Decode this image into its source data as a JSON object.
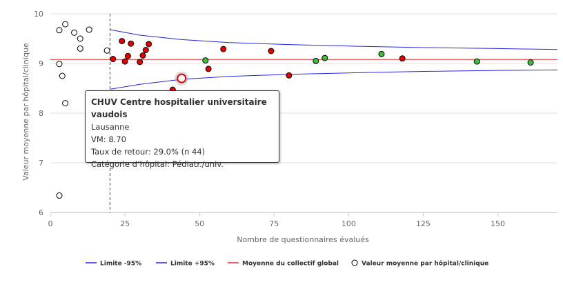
{
  "chart_data": {
    "type": "scatter",
    "xlabel": "Nombre de questionnaires évalués",
    "ylabel": "Valeur moyenne par hôpital/clinique",
    "xlim": [
      0,
      170
    ],
    "ylim": [
      6,
      10
    ],
    "x_ticks": [
      0,
      25,
      50,
      75,
      100,
      125,
      150
    ],
    "y_ticks": [
      6,
      7,
      8,
      9,
      10
    ],
    "grid": "horizontal",
    "legend_position": "bottom",
    "reference_x": 20,
    "mean": 9.08,
    "limits": {
      "lower_95": [
        [
          20,
          8.48
        ],
        [
          30,
          8.58
        ],
        [
          44,
          8.68
        ],
        [
          60,
          8.74
        ],
        [
          80,
          8.78
        ],
        [
          100,
          8.81
        ],
        [
          125,
          8.84
        ],
        [
          150,
          8.86
        ],
        [
          170,
          8.87
        ]
      ],
      "upper_95": [
        [
          20,
          9.68
        ],
        [
          30,
          9.57
        ],
        [
          44,
          9.48
        ],
        [
          60,
          9.42
        ],
        [
          80,
          9.38
        ],
        [
          100,
          9.35
        ],
        [
          125,
          9.32
        ],
        [
          150,
          9.3
        ],
        [
          170,
          9.28
        ]
      ]
    },
    "series": [
      {
        "name": "Limite -95%",
        "kind": "line",
        "color": "#2323e8"
      },
      {
        "name": "Limite +95%",
        "kind": "line",
        "color": "#2323e8"
      },
      {
        "name": "Moyenne du collectif global",
        "kind": "line",
        "color": "#e03131"
      },
      {
        "name": "Valeur moyenne par hôpital/clinique",
        "kind": "scatter",
        "color": "#000000"
      }
    ],
    "points": [
      {
        "x": 3,
        "y": 9.67,
        "group": "open"
      },
      {
        "x": 5,
        "y": 9.79,
        "group": "open"
      },
      {
        "x": 8,
        "y": 9.62,
        "group": "open"
      },
      {
        "x": 10,
        "y": 9.5,
        "group": "open"
      },
      {
        "x": 13,
        "y": 9.68,
        "group": "open"
      },
      {
        "x": 10,
        "y": 9.3,
        "group": "open"
      },
      {
        "x": 19,
        "y": 9.26,
        "group": "open"
      },
      {
        "x": 3,
        "y": 8.99,
        "group": "open"
      },
      {
        "x": 4,
        "y": 8.75,
        "group": "open"
      },
      {
        "x": 5,
        "y": 8.2,
        "group": "open"
      },
      {
        "x": 3,
        "y": 6.34,
        "group": "open"
      },
      {
        "x": 24,
        "y": 9.45,
        "group": "red"
      },
      {
        "x": 27,
        "y": 9.4,
        "group": "red"
      },
      {
        "x": 26,
        "y": 9.15,
        "group": "red"
      },
      {
        "x": 21,
        "y": 9.09,
        "group": "red"
      },
      {
        "x": 25,
        "y": 9.04,
        "group": "red"
      },
      {
        "x": 30,
        "y": 9.03,
        "group": "red"
      },
      {
        "x": 31,
        "y": 9.16,
        "group": "red"
      },
      {
        "x": 32,
        "y": 9.27,
        "group": "red"
      },
      {
        "x": 33,
        "y": 9.39,
        "group": "red"
      },
      {
        "x": 41,
        "y": 8.47,
        "group": "red"
      },
      {
        "x": 53,
        "y": 8.89,
        "group": "red"
      },
      {
        "x": 58,
        "y": 9.29,
        "group": "red"
      },
      {
        "x": 74,
        "y": 9.25,
        "group": "red"
      },
      {
        "x": 80,
        "y": 8.76,
        "group": "red"
      },
      {
        "x": 118,
        "y": 9.1,
        "group": "red"
      },
      {
        "x": 52,
        "y": 9.06,
        "group": "green"
      },
      {
        "x": 89,
        "y": 9.05,
        "group": "green"
      },
      {
        "x": 92,
        "y": 9.11,
        "group": "green"
      },
      {
        "x": 111,
        "y": 9.19,
        "group": "green"
      },
      {
        "x": 143,
        "y": 9.04,
        "group": "green"
      },
      {
        "x": 161,
        "y": 9.02,
        "group": "green"
      },
      {
        "x": 44,
        "y": 8.7,
        "group": "highlight"
      }
    ],
    "colors": {
      "red": "#e00000",
      "green": "#3cbe3c",
      "open": "#ffffff",
      "highlight": "#e00000",
      "grid": "#e0e0e0",
      "axis": "#cccccc",
      "reference": "#cc0000"
    }
  },
  "tooltip": {
    "title": "CHUV Centre hospitalier universitaire vaudois",
    "location": "Lausanne",
    "vm": "VM: 8.70",
    "return_rate": "Taux de retour: 29.0% (n 44)",
    "category": "Catégorie d’hôpital: Pédiatr./univ."
  }
}
